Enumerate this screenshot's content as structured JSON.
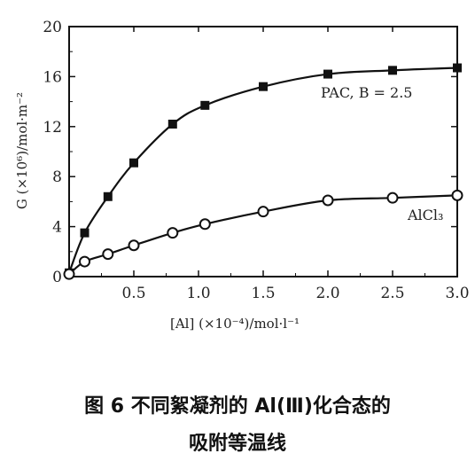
{
  "caption": {
    "line1": "图 6  不同絮凝剂的 Al(Ⅲ)化合态的",
    "line2": "吸附等温线"
  },
  "chart_data": {
    "type": "line",
    "title": "",
    "xlabel": "[Al] (×10⁻⁴)/mol·l⁻¹",
    "ylabel": "G (×10⁶)/mol·m⁻²",
    "xlim": [
      0,
      3.0
    ],
    "ylim": [
      0,
      20
    ],
    "x_ticks": [
      0.5,
      1.0,
      1.5,
      2.0,
      2.5,
      3.0
    ],
    "x_tick_labels": [
      "0.5",
      "1.0",
      "1.5",
      "2.0",
      "2.5",
      "3.0"
    ],
    "y_ticks": [
      0,
      4,
      8,
      12,
      16,
      20
    ],
    "y_tick_labels": [
      "0",
      "4",
      "8",
      "12",
      "16",
      "20"
    ],
    "grid": false,
    "series": [
      {
        "name": "PAC, B = 2.5",
        "marker": "filled-square",
        "color": "#111111",
        "x": [
          0,
          0.12,
          0.3,
          0.5,
          0.8,
          1.05,
          1.5,
          2.0,
          2.5,
          3.0
        ],
        "y": [
          0.3,
          3.5,
          6.4,
          9.1,
          12.2,
          13.7,
          15.2,
          16.2,
          16.5,
          16.7
        ]
      },
      {
        "name": "AlCl₃",
        "marker": "open-circle",
        "color": "#111111",
        "x": [
          0,
          0.12,
          0.3,
          0.5,
          0.8,
          1.05,
          1.5,
          2.0,
          2.5,
          3.0
        ],
        "y": [
          0.2,
          1.2,
          1.8,
          2.5,
          3.5,
          4.2,
          5.2,
          6.1,
          6.3,
          6.5
        ]
      }
    ]
  }
}
